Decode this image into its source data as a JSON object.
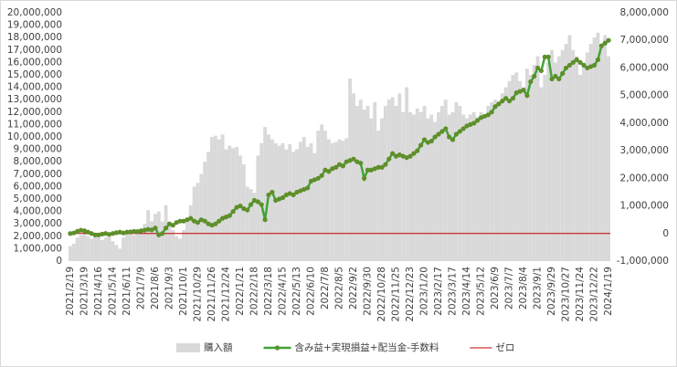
{
  "chart_data": {
    "type": "combo",
    "categories": [
      "2021/2/19",
      null,
      null,
      null,
      "2021/3/19",
      null,
      null,
      null,
      "2021/4/16",
      null,
      null,
      null,
      "2021/5/14",
      null,
      null,
      null,
      "2021/6/11",
      null,
      null,
      null,
      "2021/7/9",
      null,
      null,
      null,
      "2021/8/6",
      null,
      null,
      null,
      "2021/9/3",
      null,
      null,
      null,
      "2021/10/1",
      null,
      null,
      null,
      "2021/10/29",
      null,
      null,
      null,
      "2021/11/26",
      null,
      null,
      null,
      "2021/12/24",
      null,
      null,
      null,
      "2022/1/21",
      null,
      null,
      null,
      "2022/2/18",
      null,
      null,
      null,
      "2022/3/18",
      null,
      null,
      null,
      "2022/4/15",
      null,
      null,
      null,
      "2022/5/13",
      null,
      null,
      null,
      "2022/6/10",
      null,
      null,
      null,
      "2022/7/8",
      null,
      null,
      null,
      "2022/8/5",
      null,
      null,
      null,
      "2022/9/2",
      null,
      null,
      null,
      "2022/9/30",
      null,
      null,
      null,
      "2022/10/28",
      null,
      null,
      null,
      "2022/11/25",
      null,
      null,
      null,
      "2022/12/23",
      null,
      null,
      null,
      "2023/1/20",
      null,
      null,
      null,
      "2023/2/17",
      null,
      null,
      null,
      "2023/3/17",
      null,
      null,
      null,
      "2023/4/14",
      null,
      null,
      null,
      "2023/5/12",
      null,
      null,
      null,
      "2023/6/9",
      null,
      null,
      null,
      "2023/7/7",
      null,
      null,
      null,
      "2023/8/4",
      null,
      null,
      null,
      "2023/9/1",
      null,
      null,
      null,
      "2023/9/29",
      null,
      null,
      null,
      "2023/10/27",
      null,
      null,
      null,
      "2023/11/24",
      null,
      null,
      null,
      "2023/12/22",
      null,
      null,
      null,
      "2024/1/19"
    ],
    "series": [
      {
        "name": "購入額",
        "type": "bar",
        "color": "#d9d9d9",
        "values": [
          1200000,
          1400000,
          1900000,
          2100000,
          2200000,
          2000000,
          1800000,
          2100000,
          2000000,
          1700000,
          1900000,
          2000000,
          1600000,
          1300000,
          1000000,
          1900000,
          2200000,
          2300000,
          2100000,
          2400000,
          2500000,
          3000000,
          4100000,
          3200000,
          3800000,
          4000000,
          3200000,
          4500000,
          3000000,
          2500000,
          2000000,
          1800000,
          2500000,
          3500000,
          4500000,
          6000000,
          6300000,
          7000000,
          8000000,
          8800000,
          10000000,
          10100000,
          9800000,
          10200000,
          9000000,
          9300000,
          9100000,
          9200000,
          8500000,
          7800000,
          6000000,
          5800000,
          5500000,
          8500000,
          9500000,
          10800000,
          10200000,
          9800000,
          9500000,
          9300000,
          9500000,
          9000000,
          9400000,
          8800000,
          9000000,
          9600000,
          10000000,
          9200000,
          9500000,
          8700000,
          10500000,
          11000000,
          10500000,
          9800000,
          9500000,
          9600000,
          9800000,
          9700000,
          9900000,
          14700000,
          13500000,
          12500000,
          13000000,
          12200000,
          12500000,
          11500000,
          12800000,
          10500000,
          11500000,
          12500000,
          13000000,
          13200000,
          12500000,
          13500000,
          12000000,
          14000000,
          12000000,
          11800000,
          12300000,
          12000000,
          12500000,
          11500000,
          11800000,
          11200000,
          12000000,
          12500000,
          13000000,
          11800000,
          12000000,
          12800000,
          12500000,
          11800000,
          11500000,
          11800000,
          12000000,
          11600000,
          12000000,
          11500000,
          12500000,
          12800000,
          13000000,
          12800000,
          13500000,
          14000000,
          14500000,
          15000000,
          15200000,
          14500000,
          14000000,
          15500000,
          15000000,
          15800000,
          16500000,
          14000000,
          15000000,
          16000000,
          17000000,
          16000000,
          16500000,
          17000000,
          17500000,
          18200000,
          17000000,
          16500000,
          15000000,
          16000000,
          16800000,
          17500000,
          18000000,
          18400000,
          17500000,
          18200000,
          16500000
        ]
      },
      {
        "name": "含み益+実現損益+配当金-手数料",
        "type": "line",
        "axis": "y2",
        "color": "#3fa535",
        "marker_color": "#5e8f2a",
        "values": [
          0,
          20000,
          80000,
          120000,
          100000,
          50000,
          0,
          -50000,
          -50000,
          -20000,
          0,
          -30000,
          0,
          30000,
          50000,
          20000,
          50000,
          60000,
          80000,
          70000,
          100000,
          120000,
          150000,
          130000,
          200000,
          -50000,
          0,
          200000,
          350000,
          300000,
          400000,
          450000,
          450000,
          500000,
          550000,
          450000,
          400000,
          500000,
          450000,
          350000,
          300000,
          350000,
          450000,
          550000,
          600000,
          650000,
          800000,
          950000,
          1000000,
          900000,
          850000,
          1050000,
          1200000,
          1150000,
          1050000,
          500000,
          1400000,
          1500000,
          1200000,
          1250000,
          1300000,
          1400000,
          1450000,
          1400000,
          1500000,
          1550000,
          1600000,
          1650000,
          1900000,
          1950000,
          2000000,
          2100000,
          2300000,
          2250000,
          2350000,
          2400000,
          2500000,
          2450000,
          2600000,
          2650000,
          2700000,
          2600000,
          2550000,
          2000000,
          2300000,
          2300000,
          2350000,
          2400000,
          2400000,
          2500000,
          2700000,
          2900000,
          2800000,
          2850000,
          2800000,
          2750000,
          2800000,
          2900000,
          3000000,
          3200000,
          3400000,
          3300000,
          3350000,
          3500000,
          3600000,
          3700000,
          3800000,
          3500000,
          3400000,
          3600000,
          3700000,
          3800000,
          3900000,
          3950000,
          4000000,
          4100000,
          4200000,
          4250000,
          4300000,
          4400000,
          4600000,
          4700000,
          4800000,
          4900000,
          4800000,
          4900000,
          5100000,
          5150000,
          5200000,
          5000000,
          5500000,
          5700000,
          6000000,
          5900000,
          6400000,
          6400000,
          5600000,
          5700000,
          5600000,
          5800000,
          6000000,
          6100000,
          6200000,
          6300000,
          6200000,
          6100000,
          6000000,
          6050000,
          6100000,
          6300000,
          6800000,
          6900000,
          7000000
        ]
      }
    ],
    "reference_lines": [
      {
        "name": "ゼロ",
        "value": 0,
        "axis": "y2",
        "color": "#c00000"
      }
    ],
    "ylim": [
      0,
      20000000
    ],
    "yticks": [
      0,
      {
        "value": 1000000,
        "label": "1,000,000"
      },
      {
        "value": 2000000,
        "label": "2,000,000"
      },
      {
        "value": 3000000,
        "label": "3,000,000"
      },
      {
        "value": 4000000,
        "label": "4,000,000"
      },
      {
        "value": 5000000,
        "label": "5,000,000"
      },
      {
        "value": 6000000,
        "label": "6,000,000"
      },
      {
        "value": 7000000,
        "label": "7,000,000"
      },
      {
        "value": 8000000,
        "label": "8,000,000"
      },
      {
        "value": 9000000,
        "label": "9,000,000"
      },
      {
        "value": 10000000,
        "label": "10,000,000"
      },
      {
        "value": 11000000,
        "label": "11,000,000"
      },
      {
        "value": 12000000,
        "label": "12,000,000"
      },
      {
        "value": 13000000,
        "label": "13,000,000"
      },
      {
        "value": 14000000,
        "label": "14,000,000"
      },
      {
        "value": 15000000,
        "label": "15,000,000"
      },
      {
        "value": 16000000,
        "label": "16,000,000"
      },
      {
        "value": 17000000,
        "label": "17,000,000"
      },
      {
        "value": 18000000,
        "label": "18,000,000"
      },
      {
        "value": 19000000,
        "label": "19,000,000"
      },
      {
        "value": 20000000,
        "label": "20,000,000"
      }
    ],
    "y2lim": [
      -1000000,
      8000000
    ],
    "y2ticks": [
      {
        "value": -1000000,
        "label": "-1,000,000"
      },
      0,
      {
        "value": 1000000,
        "label": "1,000,000"
      },
      {
        "value": 2000000,
        "label": "2,000,000"
      },
      {
        "value": 3000000,
        "label": "3,000,000"
      },
      {
        "value": 4000000,
        "label": "4,000,000"
      },
      {
        "value": 5000000,
        "label": "5,000,000"
      },
      {
        "value": 6000000,
        "label": "6,000,000"
      },
      {
        "value": 7000000,
        "label": "7,000,000"
      },
      {
        "value": 8000000,
        "label": "8,000,000"
      }
    ],
    "grid": false,
    "legend": "bottom"
  }
}
